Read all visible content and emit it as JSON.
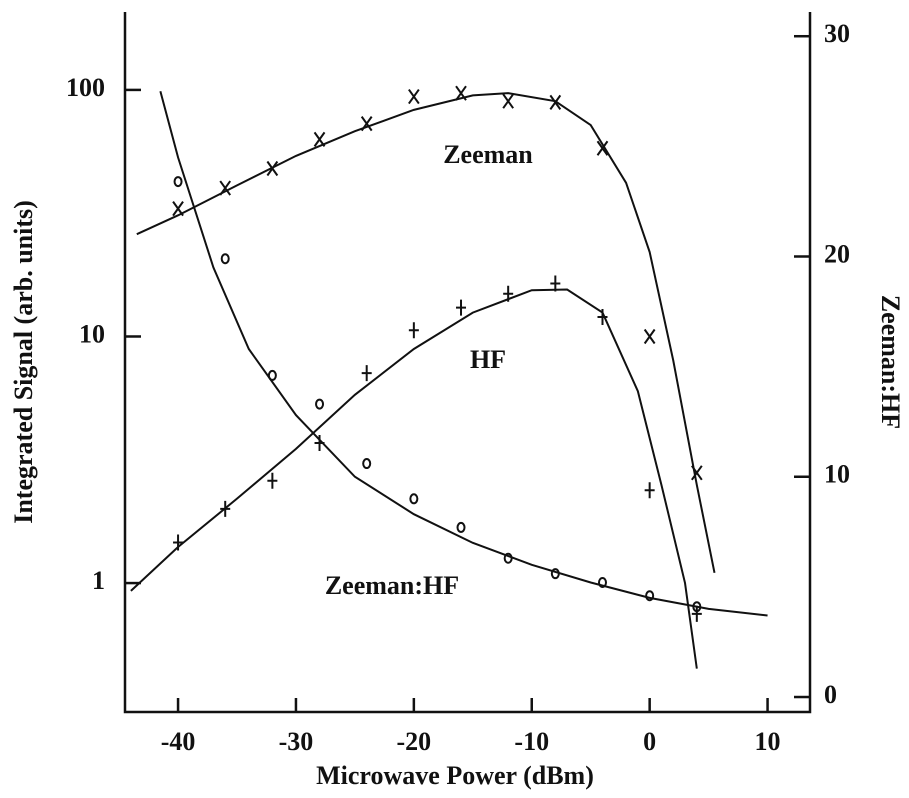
{
  "chart_data": {
    "type": "scatter",
    "x_label": "Microwave Power (dBm)",
    "y_label": "Integrated Signal (arb. units)",
    "y2_label": "Zeeman:HF",
    "x": [
      -40,
      -36,
      -32,
      -28,
      -24,
      -20,
      -16,
      -12,
      -8,
      -4,
      0,
      4
    ],
    "xlim": [
      -44.5,
      13.6
    ],
    "xticks": [
      -40,
      -30,
      -20,
      -10,
      0,
      10
    ],
    "ylim": [
      0.3,
      207
    ],
    "yticks": [
      1,
      10,
      100
    ],
    "ylog": true,
    "y2lim": [
      -0.68,
      31.1
    ],
    "y2ticks": [
      0,
      10,
      20,
      30
    ],
    "series": [
      {
        "name": "Zeeman",
        "color": "#111",
        "marker": "x",
        "values": [
          33,
          40,
          48,
          63,
          73,
          94,
          97,
          90,
          89,
          58,
          10,
          2.8
        ]
      },
      {
        "name": "HF",
        "color": "#111",
        "marker": "+",
        "values": [
          1.46,
          2.0,
          2.6,
          3.7,
          7.1,
          10.6,
          13.1,
          14.9,
          16.4,
          12.0,
          2.38,
          0.75
        ]
      },
      {
        "name": "Zeeman:HF",
        "color": "#111",
        "marker": "o",
        "axis": "y2",
        "values": [
          23.4,
          19.9,
          14.6,
          13.3,
          10.6,
          9.0,
          7.7,
          6.3,
          5.6,
          5.2,
          4.6,
          4.1
        ]
      }
    ],
    "fits": [
      {
        "x": [
          -43.5,
          -40,
          -35,
          -30,
          -25,
          -20,
          -15,
          -12,
          -8,
          -5,
          -2,
          0,
          2,
          4,
          5.5
        ],
        "values": [
          26,
          31,
          41,
          54,
          68,
          83,
          95,
          97,
          90,
          72,
          42,
          22,
          8,
          2.5,
          1.1
        ]
      },
      {
        "x": [
          -44,
          -40,
          -35,
          -30,
          -25,
          -20,
          -15,
          -10,
          -7,
          -4,
          -1,
          1,
          3,
          4
        ],
        "values": [
          0.93,
          1.4,
          2.2,
          3.5,
          5.8,
          8.9,
          12.5,
          15.4,
          15.5,
          12.5,
          6,
          2.5,
          1,
          0.45
        ]
      },
      {
        "axis": "y2",
        "x": [
          -41.5,
          -40,
          -37,
          -34,
          -30,
          -25,
          -20,
          -15,
          -10,
          -5,
          0,
          5,
          10
        ],
        "values": [
          27.5,
          24.5,
          19.5,
          15.8,
          12.8,
          10,
          8.3,
          7,
          6,
          5.2,
          4.5,
          4,
          3.7
        ]
      }
    ]
  }
}
